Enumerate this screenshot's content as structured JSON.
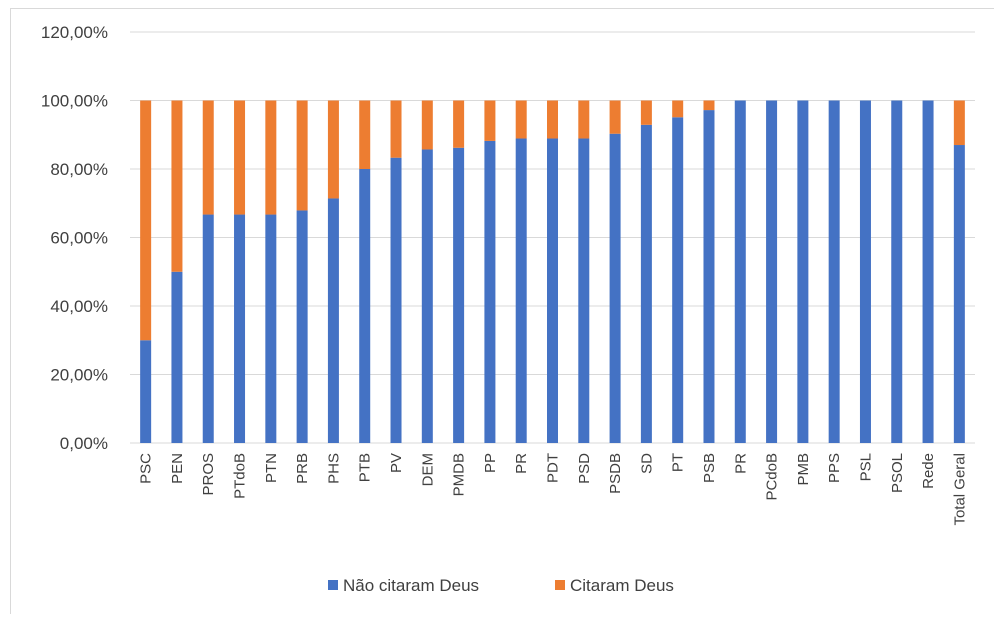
{
  "chart_data": {
    "type": "bar",
    "stacked": true,
    "categories": [
      "PSC",
      "PEN",
      "PROS",
      "PTdoB",
      "PTN",
      "PRB",
      "PHS",
      "PTB",
      "PV",
      "DEM",
      "PMDB",
      "PP",
      "PR",
      "PDT",
      "PSD",
      "PSDB",
      "SD",
      "PT",
      "PSB",
      "PR",
      "PCdoB",
      "PMB",
      "PPS",
      "PSL",
      "PSOL",
      "Rede",
      "Total Geral"
    ],
    "series": [
      {
        "name": "Não citaram Deus",
        "color": "#4472c4",
        "values": [
          30,
          50,
          66.7,
          66.7,
          66.7,
          67.9,
          71.4,
          80,
          83.3,
          85.7,
          86.2,
          88.2,
          88.9,
          88.9,
          88.9,
          90.3,
          92.9,
          95.1,
          97.2,
          100,
          100,
          100,
          100,
          100,
          100,
          100,
          87
        ]
      },
      {
        "name": "Citaram Deus",
        "color": "#ed7d31",
        "values": [
          70,
          50,
          33.3,
          33.3,
          33.3,
          32.1,
          28.6,
          20,
          16.7,
          14.3,
          13.8,
          11.8,
          11.1,
          11.1,
          11.1,
          9.7,
          7.1,
          4.9,
          2.8,
          0,
          0,
          0,
          0,
          0,
          0,
          0,
          13
        ]
      }
    ],
    "yticks": [
      "0,00%",
      "20,00%",
      "40,00%",
      "60,00%",
      "80,00%",
      "100,00%",
      "120,00%"
    ],
    "ylim": [
      0,
      120
    ],
    "grid": true,
    "legend_position": "bottom"
  }
}
